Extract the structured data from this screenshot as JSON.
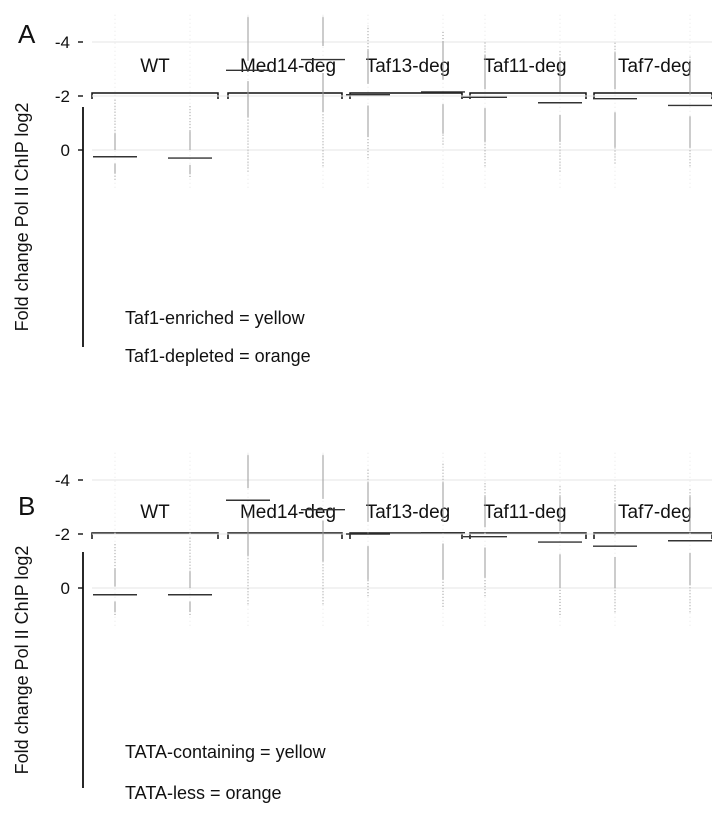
{
  "colors": {
    "yellow": "#fbe7a0",
    "yellow_stroke": "#b8a46a",
    "orange": "#f7a94f",
    "orange_stroke": "#b07838",
    "median": "#333333",
    "whisker": "#999999",
    "axis": "#111111",
    "grid": "#e6e6e6"
  },
  "chart_data": [
    {
      "type": "box",
      "panel": "A",
      "ylabel": "Fold change Pol II ChIP log2",
      "yticks": [
        0,
        -2,
        -4
      ],
      "ylim": [
        -5.1,
        1.4
      ],
      "grid": true,
      "categories": [
        "WT",
        "Med14-deg",
        "Taf13-deg",
        "Taf11-deg",
        "Taf7-deg"
      ],
      "legend": [
        "Taf1-enriched = yellow",
        "Taf1-depleted = orange"
      ],
      "series": [
        {
          "color": "yellow",
          "boxes": [
            {
              "q1": 0.0,
              "median": 0.25,
              "q3": 0.5,
              "whisker_low": -0.6,
              "whisker_high": 0.85,
              "out_low": -1.9,
              "out_high": 1.1
            },
            {
              "q1": -3.3,
              "median": -2.95,
              "q3": -2.55,
              "whisker_low": -4.9,
              "whisker_high": -1.2,
              "out_low": -5.0,
              "out_high": 0.8
            },
            {
              "q1": -2.45,
              "median": -2.05,
              "q3": -1.65,
              "whisker_low": -3.7,
              "whisker_high": -0.5,
              "out_low": -4.6,
              "out_high": 0.3
            },
            {
              "q1": -2.25,
              "median": -1.95,
              "q3": -1.55,
              "whisker_low": -3.5,
              "whisker_high": -0.3,
              "out_low": -4.0,
              "out_high": 0.6
            },
            {
              "q1": -2.25,
              "median": -1.9,
              "q3": -1.4,
              "whisker_low": -3.6,
              "whisker_high": -0.1,
              "out_low": -4.0,
              "out_high": 0.5
            }
          ]
        },
        {
          "color": "orange",
          "boxes": [
            {
              "q1": 0.0,
              "median": 0.3,
              "q3": 0.55,
              "whisker_low": -0.7,
              "whisker_high": 0.9,
              "out_low": -1.7,
              "out_high": 1.0
            },
            {
              "q1": -3.85,
              "median": -3.35,
              "q3": -2.85,
              "whisker_low": -4.9,
              "whisker_high": -1.4,
              "out_low": -5.0,
              "out_high": 0.6
            },
            {
              "q1": -2.6,
              "median": -2.15,
              "q3": -1.7,
              "whisker_low": -4.0,
              "whisker_high": -0.6,
              "out_low": -4.4,
              "out_high": -0.2
            },
            {
              "q1": -2.15,
              "median": -1.75,
              "q3": -1.3,
              "whisker_low": -3.4,
              "whisker_high": -0.3,
              "out_low": -3.7,
              "out_high": 0.8
            },
            {
              "q1": -2.05,
              "median": -1.65,
              "q3": -1.25,
              "whisker_low": -3.2,
              "whisker_high": -0.1,
              "out_low": -3.5,
              "out_high": 0.6
            }
          ]
        }
      ]
    },
    {
      "type": "box",
      "panel": "B",
      "ylabel": "Fold change Pol II ChIP log2",
      "yticks": [
        0,
        -2,
        -4
      ],
      "ylim": [
        -5.1,
        1.4
      ],
      "grid": true,
      "categories": [
        "WT",
        "Med14-deg",
        "Taf13-deg",
        "Taf11-deg",
        "Taf7-deg"
      ],
      "legend": [
        "TATA-containing = yellow",
        "TATA-less = orange"
      ],
      "series": [
        {
          "color": "yellow",
          "boxes": [
            {
              "q1": -0.05,
              "median": 0.25,
              "q3": 0.5,
              "whisker_low": -0.7,
              "whisker_high": 0.9,
              "out_low": -1.7,
              "out_high": 1.0
            },
            {
              "q1": -3.7,
              "median": -3.25,
              "q3": -2.8,
              "whisker_low": -4.9,
              "whisker_high": -1.2,
              "out_low": -5.0,
              "out_high": 0.6
            },
            {
              "q1": -2.45,
              "median": -2.0,
              "q3": -1.55,
              "whisker_low": -3.9,
              "whisker_high": -0.3,
              "out_low": -4.4,
              "out_high": 0.3
            },
            {
              "q1": -2.25,
              "median": -1.9,
              "q3": -1.5,
              "whisker_low": -3.4,
              "whisker_high": -0.4,
              "out_low": -3.9,
              "out_high": 0.3
            },
            {
              "q1": -1.95,
              "median": -1.55,
              "q3": -1.15,
              "whisker_low": -3.1,
              "whisker_high": 0.0,
              "out_low": -3.8,
              "out_high": 0.9
            }
          ]
        },
        {
          "color": "orange",
          "boxes": [
            {
              "q1": 0.0,
              "median": 0.25,
              "q3": 0.5,
              "whisker_low": -0.6,
              "whisker_high": 0.85,
              "out_low": -1.9,
              "out_high": 1.0
            },
            {
              "q1": -3.3,
              "median": -2.9,
              "q3": -2.5,
              "whisker_low": -4.9,
              "whisker_high": -1.0,
              "out_low": -5.0,
              "out_high": 0.6
            },
            {
              "q1": -2.45,
              "median": -2.05,
              "q3": -1.65,
              "whisker_low": -3.9,
              "whisker_high": -0.3,
              "out_low": -4.6,
              "out_high": 0.7
            },
            {
              "q1": -2.1,
              "median": -1.7,
              "q3": -1.25,
              "whisker_low": -3.4,
              "whisker_high": 0.0,
              "out_low": -3.8,
              "out_high": 1.0
            },
            {
              "q1": -2.1,
              "median": -1.75,
              "q3": -1.3,
              "whisker_low": -3.4,
              "whisker_high": -0.1,
              "out_low": -3.7,
              "out_high": 0.9
            }
          ]
        }
      ]
    }
  ]
}
